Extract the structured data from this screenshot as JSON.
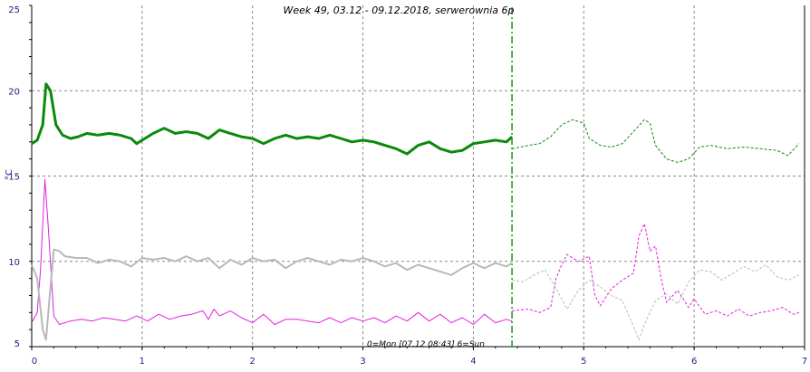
{
  "chart_data": {
    "type": "line",
    "title": "Week 49, 03.12 - 09.12.2018, serwerownia 6p",
    "ylabel": "°C",
    "xlabel": "",
    "x_note": "0=Mon [07.12 08:43] 6=Sun",
    "xlim": [
      0,
      7
    ],
    "ylim": [
      5,
      25
    ],
    "x_ticks": [
      "0",
      "1",
      "2",
      "3",
      "4",
      "5",
      "6",
      "7"
    ],
    "y_ticks": [
      "5",
      "10",
      "15",
      "20",
      "25"
    ],
    "grid": true,
    "now_marker_x": 4.35,
    "colors": {
      "green": "#0a8a0a",
      "magenta": "#e020e0",
      "gray": "#b8b8b8",
      "grid": "#888888",
      "axis_text": "#1a237e"
    },
    "series": [
      {
        "color": "green",
        "actual": [
          [
            0.0,
            16.9
          ],
          [
            0.05,
            17.1
          ],
          [
            0.1,
            18.0
          ],
          [
            0.13,
            20.4
          ],
          [
            0.17,
            20.0
          ],
          [
            0.22,
            18.0
          ],
          [
            0.28,
            17.4
          ],
          [
            0.35,
            17.2
          ],
          [
            0.42,
            17.3
          ],
          [
            0.5,
            17.5
          ],
          [
            0.6,
            17.4
          ],
          [
            0.7,
            17.5
          ],
          [
            0.8,
            17.4
          ],
          [
            0.9,
            17.2
          ],
          [
            0.95,
            16.9
          ],
          [
            1.0,
            17.1
          ],
          [
            1.1,
            17.5
          ],
          [
            1.2,
            17.8
          ],
          [
            1.3,
            17.5
          ],
          [
            1.4,
            17.6
          ],
          [
            1.5,
            17.5
          ],
          [
            1.6,
            17.2
          ],
          [
            1.7,
            17.7
          ],
          [
            1.8,
            17.5
          ],
          [
            1.9,
            17.3
          ],
          [
            2.0,
            17.2
          ],
          [
            2.1,
            16.9
          ],
          [
            2.2,
            17.2
          ],
          [
            2.3,
            17.4
          ],
          [
            2.4,
            17.2
          ],
          [
            2.5,
            17.3
          ],
          [
            2.6,
            17.2
          ],
          [
            2.7,
            17.4
          ],
          [
            2.8,
            17.2
          ],
          [
            2.9,
            17.0
          ],
          [
            3.0,
            17.1
          ],
          [
            3.1,
            17.0
          ],
          [
            3.2,
            16.8
          ],
          [
            3.3,
            16.6
          ],
          [
            3.4,
            16.3
          ],
          [
            3.5,
            16.8
          ],
          [
            3.6,
            17.0
          ],
          [
            3.7,
            16.6
          ],
          [
            3.8,
            16.4
          ],
          [
            3.9,
            16.5
          ],
          [
            4.0,
            16.9
          ],
          [
            4.1,
            17.0
          ],
          [
            4.2,
            17.1
          ],
          [
            4.3,
            17.0
          ],
          [
            4.35,
            17.3
          ]
        ],
        "forecast": [
          [
            4.35,
            16.6
          ],
          [
            4.5,
            16.8
          ],
          [
            4.6,
            16.9
          ],
          [
            4.7,
            17.3
          ],
          [
            4.8,
            18.0
          ],
          [
            4.9,
            18.3
          ],
          [
            5.0,
            18.1
          ],
          [
            5.05,
            17.2
          ],
          [
            5.15,
            16.8
          ],
          [
            5.25,
            16.7
          ],
          [
            5.35,
            16.9
          ],
          [
            5.45,
            17.6
          ],
          [
            5.55,
            18.3
          ],
          [
            5.6,
            18.1
          ],
          [
            5.65,
            16.8
          ],
          [
            5.75,
            16.0
          ],
          [
            5.85,
            15.8
          ],
          [
            5.95,
            16.0
          ],
          [
            6.05,
            16.7
          ],
          [
            6.15,
            16.8
          ],
          [
            6.3,
            16.6
          ],
          [
            6.45,
            16.7
          ],
          [
            6.6,
            16.6
          ],
          [
            6.75,
            16.5
          ],
          [
            6.85,
            16.2
          ],
          [
            6.95,
            16.9
          ]
        ]
      },
      {
        "color": "magenta",
        "actual": [
          [
            0.0,
            6.4
          ],
          [
            0.05,
            7.0
          ],
          [
            0.08,
            9.5
          ],
          [
            0.12,
            14.8
          ],
          [
            0.15,
            12.0
          ],
          [
            0.2,
            6.8
          ],
          [
            0.25,
            6.3
          ],
          [
            0.35,
            6.5
          ],
          [
            0.45,
            6.6
          ],
          [
            0.55,
            6.5
          ],
          [
            0.65,
            6.7
          ],
          [
            0.75,
            6.6
          ],
          [
            0.85,
            6.5
          ],
          [
            0.95,
            6.8
          ],
          [
            1.05,
            6.5
          ],
          [
            1.15,
            6.9
          ],
          [
            1.25,
            6.6
          ],
          [
            1.35,
            6.8
          ],
          [
            1.45,
            6.9
          ],
          [
            1.55,
            7.1
          ],
          [
            1.6,
            6.6
          ],
          [
            1.65,
            7.2
          ],
          [
            1.7,
            6.8
          ],
          [
            1.8,
            7.1
          ],
          [
            1.9,
            6.7
          ],
          [
            2.0,
            6.4
          ],
          [
            2.1,
            6.9
          ],
          [
            2.2,
            6.3
          ],
          [
            2.3,
            6.6
          ],
          [
            2.4,
            6.6
          ],
          [
            2.5,
            6.5
          ],
          [
            2.6,
            6.4
          ],
          [
            2.7,
            6.7
          ],
          [
            2.8,
            6.4
          ],
          [
            2.9,
            6.7
          ],
          [
            3.0,
            6.5
          ],
          [
            3.1,
            6.7
          ],
          [
            3.2,
            6.4
          ],
          [
            3.3,
            6.8
          ],
          [
            3.4,
            6.5
          ],
          [
            3.5,
            7.0
          ],
          [
            3.6,
            6.5
          ],
          [
            3.7,
            6.9
          ],
          [
            3.8,
            6.4
          ],
          [
            3.9,
            6.7
          ],
          [
            4.0,
            6.3
          ],
          [
            4.1,
            6.9
          ],
          [
            4.2,
            6.4
          ],
          [
            4.3,
            6.6
          ],
          [
            4.35,
            6.5
          ]
        ],
        "forecast": [
          [
            4.35,
            7.1
          ],
          [
            4.5,
            7.2
          ],
          [
            4.6,
            7.0
          ],
          [
            4.7,
            7.3
          ],
          [
            4.75,
            9.0
          ],
          [
            4.8,
            9.8
          ],
          [
            4.85,
            10.4
          ],
          [
            4.95,
            10.0
          ],
          [
            5.05,
            10.3
          ],
          [
            5.1,
            8.0
          ],
          [
            5.15,
            7.4
          ],
          [
            5.25,
            8.4
          ],
          [
            5.35,
            8.9
          ],
          [
            5.45,
            9.3
          ],
          [
            5.5,
            11.5
          ],
          [
            5.55,
            12.2
          ],
          [
            5.6,
            10.6
          ],
          [
            5.65,
            10.9
          ],
          [
            5.7,
            9.0
          ],
          [
            5.75,
            7.6
          ],
          [
            5.85,
            8.3
          ],
          [
            5.95,
            7.3
          ],
          [
            6.0,
            7.8
          ],
          [
            6.1,
            6.9
          ],
          [
            6.2,
            7.1
          ],
          [
            6.3,
            6.8
          ],
          [
            6.4,
            7.2
          ],
          [
            6.5,
            6.8
          ],
          [
            6.6,
            7.0
          ],
          [
            6.7,
            7.1
          ],
          [
            6.8,
            7.3
          ],
          [
            6.9,
            6.9
          ],
          [
            6.95,
            7.0
          ]
        ]
      },
      {
        "color": "gray",
        "actual": [
          [
            0.0,
            9.8
          ],
          [
            0.05,
            9.0
          ],
          [
            0.1,
            6.0
          ],
          [
            0.13,
            5.4
          ],
          [
            0.17,
            8.5
          ],
          [
            0.2,
            10.7
          ],
          [
            0.25,
            10.6
          ],
          [
            0.3,
            10.3
          ],
          [
            0.4,
            10.2
          ],
          [
            0.5,
            10.2
          ],
          [
            0.6,
            9.9
          ],
          [
            0.7,
            10.1
          ],
          [
            0.8,
            10.0
          ],
          [
            0.9,
            9.7
          ],
          [
            1.0,
            10.2
          ],
          [
            1.1,
            10.1
          ],
          [
            1.2,
            10.2
          ],
          [
            1.3,
            10.0
          ],
          [
            1.4,
            10.3
          ],
          [
            1.5,
            10.0
          ],
          [
            1.6,
            10.2
          ],
          [
            1.7,
            9.6
          ],
          [
            1.8,
            10.1
          ],
          [
            1.9,
            9.8
          ],
          [
            2.0,
            10.2
          ],
          [
            2.1,
            10.0
          ],
          [
            2.2,
            10.1
          ],
          [
            2.3,
            9.6
          ],
          [
            2.4,
            10.0
          ],
          [
            2.5,
            10.2
          ],
          [
            2.6,
            10.0
          ],
          [
            2.7,
            9.8
          ],
          [
            2.8,
            10.1
          ],
          [
            2.9,
            10.0
          ],
          [
            3.0,
            10.2
          ],
          [
            3.1,
            10.0
          ],
          [
            3.2,
            9.7
          ],
          [
            3.3,
            9.9
          ],
          [
            3.4,
            9.5
          ],
          [
            3.5,
            9.8
          ],
          [
            3.6,
            9.6
          ],
          [
            3.7,
            9.4
          ],
          [
            3.8,
            9.2
          ],
          [
            3.9,
            9.6
          ],
          [
            4.0,
            9.9
          ],
          [
            4.1,
            9.6
          ],
          [
            4.2,
            9.9
          ],
          [
            4.3,
            9.7
          ],
          [
            4.35,
            9.9
          ]
        ],
        "forecast": [
          [
            4.35,
            8.9
          ],
          [
            4.45,
            8.8
          ],
          [
            4.55,
            9.2
          ],
          [
            4.65,
            9.5
          ],
          [
            4.75,
            8.4
          ],
          [
            4.85,
            7.2
          ],
          [
            4.95,
            8.3
          ],
          [
            5.05,
            8.9
          ],
          [
            5.15,
            8.5
          ],
          [
            5.25,
            8.0
          ],
          [
            5.35,
            7.7
          ],
          [
            5.45,
            6.2
          ],
          [
            5.5,
            5.4
          ],
          [
            5.55,
            6.3
          ],
          [
            5.65,
            7.7
          ],
          [
            5.75,
            8.1
          ],
          [
            5.85,
            7.5
          ],
          [
            5.95,
            8.8
          ],
          [
            6.05,
            9.5
          ],
          [
            6.15,
            9.4
          ],
          [
            6.25,
            8.9
          ],
          [
            6.35,
            9.3
          ],
          [
            6.45,
            9.7
          ],
          [
            6.55,
            9.4
          ],
          [
            6.65,
            9.8
          ],
          [
            6.75,
            9.1
          ],
          [
            6.85,
            8.9
          ],
          [
            6.95,
            9.2
          ]
        ]
      }
    ]
  }
}
